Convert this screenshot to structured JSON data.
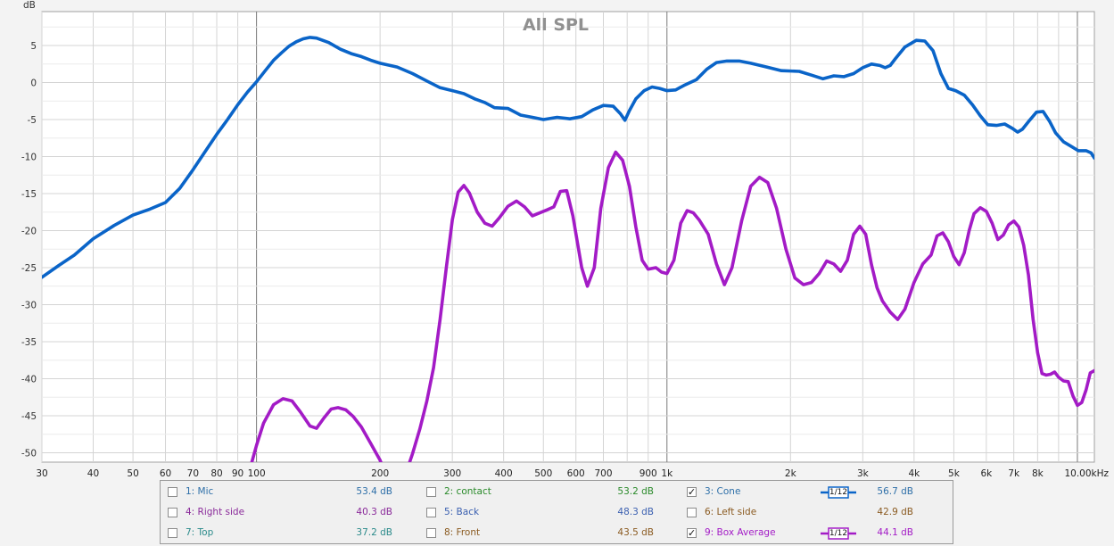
{
  "chart_data": {
    "type": "line",
    "title": "All SPL",
    "ylabel": "dB",
    "xlabel": "",
    "xscale": "log",
    "xlim": [
      30,
      11000
    ],
    "ylim": [
      -52,
      10
    ],
    "yticks": [
      5,
      0,
      -5,
      -10,
      -15,
      -20,
      -25,
      -30,
      -35,
      -40,
      -45,
      -50
    ],
    "xticks": [
      {
        "v": 30,
        "label": "30"
      },
      {
        "v": 40,
        "label": "40"
      },
      {
        "v": 50,
        "label": "50"
      },
      {
        "v": 60,
        "label": "60"
      },
      {
        "v": 70,
        "label": "70"
      },
      {
        "v": 80,
        "label": "80"
      },
      {
        "v": 90,
        "label": "90"
      },
      {
        "v": 100,
        "label": "100"
      },
      {
        "v": 200,
        "label": "200"
      },
      {
        "v": 300,
        "label": "300"
      },
      {
        "v": 400,
        "label": "400"
      },
      {
        "v": 500,
        "label": "500"
      },
      {
        "v": 600,
        "label": "600"
      },
      {
        "v": 700,
        "label": "700"
      },
      {
        "v": 900,
        "label": "900"
      },
      {
        "v": 1000,
        "label": "1k"
      },
      {
        "v": 2000,
        "label": "2k"
      },
      {
        "v": 3000,
        "label": "3k"
      },
      {
        "v": 4000,
        "label": "4k"
      },
      {
        "v": 5000,
        "label": "5k"
      },
      {
        "v": 6000,
        "label": "6k"
      },
      {
        "v": 7000,
        "label": "7k"
      },
      {
        "v": 8000,
        "label": "8k"
      },
      {
        "v": 10000,
        "label": "10.00kHz"
      }
    ],
    "grid": true,
    "series": [
      {
        "name": "Cone",
        "color": "#0a64c8",
        "points": [
          [
            30,
            -26.3
          ],
          [
            33,
            -24.7
          ],
          [
            36,
            -23.3
          ],
          [
            40,
            -21.1
          ],
          [
            45,
            -19.3
          ],
          [
            50,
            -17.9
          ],
          [
            55,
            -17.1
          ],
          [
            60,
            -16.2
          ],
          [
            65,
            -14.3
          ],
          [
            70,
            -11.8
          ],
          [
            75,
            -9.3
          ],
          [
            80,
            -7.0
          ],
          [
            85,
            -5.0
          ],
          [
            90,
            -3.0
          ],
          [
            95,
            -1.3
          ],
          [
            100,
            0.1
          ],
          [
            105,
            1.6
          ],
          [
            110,
            3.0
          ],
          [
            115,
            4.0
          ],
          [
            120,
            4.9
          ],
          [
            125,
            5.5
          ],
          [
            130,
            5.9
          ],
          [
            135,
            6.1
          ],
          [
            140,
            6.0
          ],
          [
            150,
            5.4
          ],
          [
            160,
            4.5
          ],
          [
            170,
            3.9
          ],
          [
            180,
            3.5
          ],
          [
            190,
            3.0
          ],
          [
            200,
            2.6
          ],
          [
            220,
            2.1
          ],
          [
            240,
            1.2
          ],
          [
            260,
            0.2
          ],
          [
            280,
            -0.7
          ],
          [
            300,
            -1.1
          ],
          [
            320,
            -1.5
          ],
          [
            340,
            -2.2
          ],
          [
            360,
            -2.7
          ],
          [
            380,
            -3.4
          ],
          [
            410,
            -3.5
          ],
          [
            440,
            -4.4
          ],
          [
            470,
            -4.7
          ],
          [
            500,
            -5.0
          ],
          [
            540,
            -4.7
          ],
          [
            580,
            -4.9
          ],
          [
            620,
            -4.6
          ],
          [
            660,
            -3.7
          ],
          [
            700,
            -3.1
          ],
          [
            740,
            -3.2
          ],
          [
            770,
            -4.2
          ],
          [
            790,
            -5.1
          ],
          [
            810,
            -3.8
          ],
          [
            840,
            -2.2
          ],
          [
            880,
            -1.1
          ],
          [
            920,
            -0.6
          ],
          [
            960,
            -0.8
          ],
          [
            1000,
            -1.1
          ],
          [
            1050,
            -1.0
          ],
          [
            1100,
            -0.4
          ],
          [
            1180,
            0.4
          ],
          [
            1250,
            1.8
          ],
          [
            1320,
            2.7
          ],
          [
            1400,
            2.9
          ],
          [
            1500,
            2.9
          ],
          [
            1600,
            2.6
          ],
          [
            1750,
            2.1
          ],
          [
            1900,
            1.6
          ],
          [
            2100,
            1.5
          ],
          [
            2250,
            1.0
          ],
          [
            2400,
            0.5
          ],
          [
            2550,
            0.9
          ],
          [
            2700,
            0.8
          ],
          [
            2850,
            1.2
          ],
          [
            3000,
            2.0
          ],
          [
            3150,
            2.5
          ],
          [
            3300,
            2.3
          ],
          [
            3400,
            2.0
          ],
          [
            3500,
            2.3
          ],
          [
            3600,
            3.2
          ],
          [
            3800,
            4.8
          ],
          [
            4050,
            5.7
          ],
          [
            4250,
            5.6
          ],
          [
            4450,
            4.3
          ],
          [
            4650,
            1.2
          ],
          [
            4850,
            -0.8
          ],
          [
            5050,
            -1.1
          ],
          [
            5300,
            -1.7
          ],
          [
            5550,
            -3.0
          ],
          [
            5800,
            -4.5
          ],
          [
            6050,
            -5.7
          ],
          [
            6350,
            -5.8
          ],
          [
            6650,
            -5.6
          ],
          [
            6950,
            -6.2
          ],
          [
            7150,
            -6.7
          ],
          [
            7350,
            -6.3
          ],
          [
            7650,
            -5.1
          ],
          [
            7950,
            -4.0
          ],
          [
            8250,
            -3.9
          ],
          [
            8550,
            -5.2
          ],
          [
            8850,
            -6.8
          ],
          [
            9250,
            -8.0
          ],
          [
            9650,
            -8.6
          ],
          [
            10050,
            -9.2
          ],
          [
            10500,
            -9.2
          ],
          [
            10800,
            -9.5
          ],
          [
            11000,
            -10.2
          ]
        ]
      },
      {
        "name": "Box Average",
        "color": "#a31bc6",
        "segments": [
          [
            [
              96,
              -52.5
            ],
            [
              100,
              -49.0
            ],
            [
              104,
              -46.0
            ],
            [
              110,
              -43.5
            ],
            [
              116,
              -42.7
            ],
            [
              122,
              -43.0
            ],
            [
              128,
              -44.5
            ],
            [
              135,
              -46.4
            ],
            [
              140,
              -46.7
            ],
            [
              146,
              -45.3
            ],
            [
              152,
              -44.1
            ],
            [
              158,
              -43.9
            ],
            [
              165,
              -44.2
            ],
            [
              172,
              -45.1
            ],
            [
              180,
              -46.5
            ],
            [
              190,
              -48.8
            ],
            [
              200,
              -51.0
            ],
            [
              205,
              -52.5
            ]
          ],
          [
            [
              232,
              -52.5
            ],
            [
              240,
              -50.1
            ],
            [
              250,
              -46.8
            ],
            [
              260,
              -43.0
            ],
            [
              270,
              -38.5
            ],
            [
              280,
              -32.0
            ],
            [
              290,
              -25.0
            ],
            [
              300,
              -18.5
            ],
            [
              310,
              -14.8
            ],
            [
              320,
              -13.9
            ],
            [
              330,
              -14.9
            ],
            [
              345,
              -17.5
            ],
            [
              360,
              -19.0
            ],
            [
              375,
              -19.4
            ],
            [
              390,
              -18.3
            ],
            [
              410,
              -16.7
            ],
            [
              430,
              -16.0
            ],
            [
              450,
              -16.8
            ],
            [
              470,
              -18.0
            ],
            [
              490,
              -17.6
            ],
            [
              510,
              -17.2
            ],
            [
              530,
              -16.8
            ],
            [
              550,
              -14.7
            ],
            [
              570,
              -14.6
            ],
            [
              590,
              -18.0
            ],
            [
              620,
              -25.0
            ],
            [
              640,
              -27.5
            ],
            [
              665,
              -25.0
            ],
            [
              690,
              -17.0
            ],
            [
              720,
              -11.5
            ],
            [
              750,
              -9.4
            ],
            [
              780,
              -10.5
            ],
            [
              810,
              -14.0
            ],
            [
              840,
              -19.5
            ],
            [
              870,
              -24.0
            ],
            [
              900,
              -25.2
            ],
            [
              940,
              -25.0
            ],
            [
              970,
              -25.6
            ],
            [
              1000,
              -25.8
            ],
            [
              1040,
              -24.0
            ],
            [
              1080,
              -19.0
            ],
            [
              1120,
              -17.3
            ],
            [
              1160,
              -17.6
            ],
            [
              1200,
              -18.6
            ],
            [
              1260,
              -20.5
            ],
            [
              1320,
              -24.5
            ],
            [
              1380,
              -27.3
            ],
            [
              1440,
              -25.0
            ],
            [
              1520,
              -18.7
            ],
            [
              1600,
              -14.0
            ],
            [
              1680,
              -12.8
            ],
            [
              1760,
              -13.5
            ],
            [
              1850,
              -17.0
            ],
            [
              1950,
              -22.5
            ],
            [
              2050,
              -26.4
            ],
            [
              2150,
              -27.3
            ],
            [
              2250,
              -27.0
            ],
            [
              2350,
              -25.8
            ],
            [
              2450,
              -24.1
            ],
            [
              2550,
              -24.5
            ],
            [
              2650,
              -25.5
            ],
            [
              2750,
              -24.0
            ],
            [
              2850,
              -20.5
            ],
            [
              2950,
              -19.4
            ],
            [
              3050,
              -20.5
            ],
            [
              3150,
              -24.6
            ],
            [
              3250,
              -27.7
            ],
            [
              3350,
              -29.5
            ],
            [
              3500,
              -31.0
            ],
            [
              3650,
              -32.0
            ],
            [
              3800,
              -30.6
            ],
            [
              4000,
              -27.0
            ],
            [
              4200,
              -24.5
            ],
            [
              4400,
              -23.3
            ],
            [
              4550,
              -20.7
            ],
            [
              4700,
              -20.3
            ],
            [
              4850,
              -21.5
            ],
            [
              5000,
              -23.5
            ],
            [
              5150,
              -24.6
            ],
            [
              5300,
              -23.0
            ],
            [
              5450,
              -20.0
            ],
            [
              5600,
              -17.7
            ],
            [
              5800,
              -16.9
            ],
            [
              6000,
              -17.4
            ],
            [
              6200,
              -19.0
            ],
            [
              6400,
              -21.2
            ],
            [
              6600,
              -20.6
            ],
            [
              6800,
              -19.2
            ],
            [
              7000,
              -18.7
            ],
            [
              7200,
              -19.5
            ],
            [
              7400,
              -22.0
            ],
            [
              7600,
              -26.0
            ],
            [
              7800,
              -32.0
            ],
            [
              8000,
              -36.5
            ],
            [
              8200,
              -39.3
            ],
            [
              8400,
              -39.5
            ],
            [
              8600,
              -39.4
            ],
            [
              8800,
              -39.1
            ],
            [
              9000,
              -39.8
            ],
            [
              9250,
              -40.3
            ],
            [
              9500,
              -40.4
            ],
            [
              9750,
              -42.3
            ],
            [
              10000,
              -43.6
            ],
            [
              10250,
              -43.2
            ],
            [
              10500,
              -41.5
            ],
            [
              10750,
              -39.2
            ],
            [
              11000,
              -38.9
            ]
          ]
        ]
      }
    ]
  },
  "legend": {
    "items": [
      {
        "name": "1: Mic",
        "db": "53.4 dB",
        "color": "#2e6fa8",
        "checked": ""
      },
      {
        "name": "2: contact",
        "db": "53.2 dB",
        "color": "#2a8a2a",
        "checked": ""
      },
      {
        "name": "3: Cone",
        "db": "56.7 dB",
        "color": "#2e6fa8",
        "checked": "✓"
      },
      {
        "name": "4: Right side",
        "db": "40.3 dB",
        "color": "#8a2a9a",
        "checked": ""
      },
      {
        "name": "5: Back",
        "db": "48.3 dB",
        "color": "#3a5fb0",
        "checked": ""
      },
      {
        "name": "6: Left side",
        "db": "42.9 dB",
        "color": "#8a5a20",
        "checked": ""
      },
      {
        "name": "7: Top",
        "db": "37.2 dB",
        "color": "#2a8a8a",
        "checked": ""
      },
      {
        "name": "8: Front",
        "db": "43.5 dB",
        "color": "#8a5a20",
        "checked": ""
      },
      {
        "name": "9: Box Average",
        "db": "44.1 dB",
        "color": "#a31bc6",
        "checked": "✓"
      }
    ],
    "smoothing": [
      {
        "label": "1/12",
        "color": "#0a64c8"
      },
      {
        "label": "1/12",
        "color": "#a31bc6"
      }
    ]
  }
}
